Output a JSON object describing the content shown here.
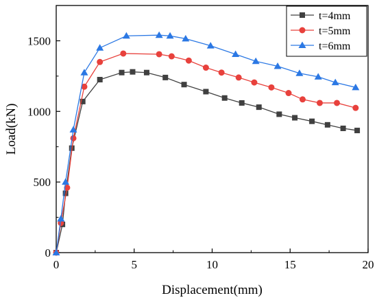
{
  "chart_data": {
    "type": "line",
    "xlabel": "Displacement(mm)",
    "ylabel": "Load(kN)",
    "xlim": [
      0,
      20
    ],
    "ylim": [
      0,
      1750
    ],
    "xticks": [
      0,
      5,
      10,
      15,
      20
    ],
    "yticks": [
      0,
      500,
      1000,
      1500
    ],
    "grid": false,
    "legend_position": "top-right",
    "series": [
      {
        "name": "t=4mm",
        "color": "#404040",
        "marker": "square",
        "x": [
          0,
          0.4,
          0.6,
          1.0,
          1.7,
          2.8,
          4.2,
          4.9,
          5.8,
          7.0,
          8.2,
          9.6,
          10.8,
          11.9,
          13.0,
          14.3,
          15.3,
          16.4,
          17.4,
          18.4,
          19.3
        ],
        "y": [
          0,
          200,
          420,
          740,
          1070,
          1225,
          1275,
          1280,
          1275,
          1240,
          1190,
          1140,
          1095,
          1060,
          1030,
          980,
          955,
          930,
          905,
          880,
          865
        ]
      },
      {
        "name": "t=5mm",
        "color": "#e8413c",
        "marker": "circle",
        "x": [
          0,
          0.3,
          0.7,
          1.1,
          1.8,
          2.8,
          4.3,
          6.6,
          7.4,
          8.5,
          9.6,
          10.6,
          11.7,
          12.7,
          13.8,
          14.9,
          15.8,
          16.9,
          18.0,
          19.2
        ],
        "y": [
          0,
          210,
          460,
          810,
          1175,
          1350,
          1410,
          1405,
          1390,
          1360,
          1310,
          1275,
          1240,
          1205,
          1170,
          1130,
          1085,
          1060,
          1060,
          1025
        ]
      },
      {
        "name": "t=6mm",
        "color": "#2b78e4",
        "marker": "triangle",
        "x": [
          0,
          0.3,
          0.6,
          1.1,
          1.8,
          2.8,
          4.5,
          6.6,
          7.3,
          8.3,
          9.9,
          11.5,
          12.8,
          14.2,
          15.6,
          16.8,
          17.9,
          19.2
        ],
        "y": [
          0,
          240,
          500,
          870,
          1275,
          1450,
          1535,
          1540,
          1535,
          1515,
          1465,
          1405,
          1355,
          1320,
          1270,
          1245,
          1205,
          1170
        ]
      }
    ]
  }
}
